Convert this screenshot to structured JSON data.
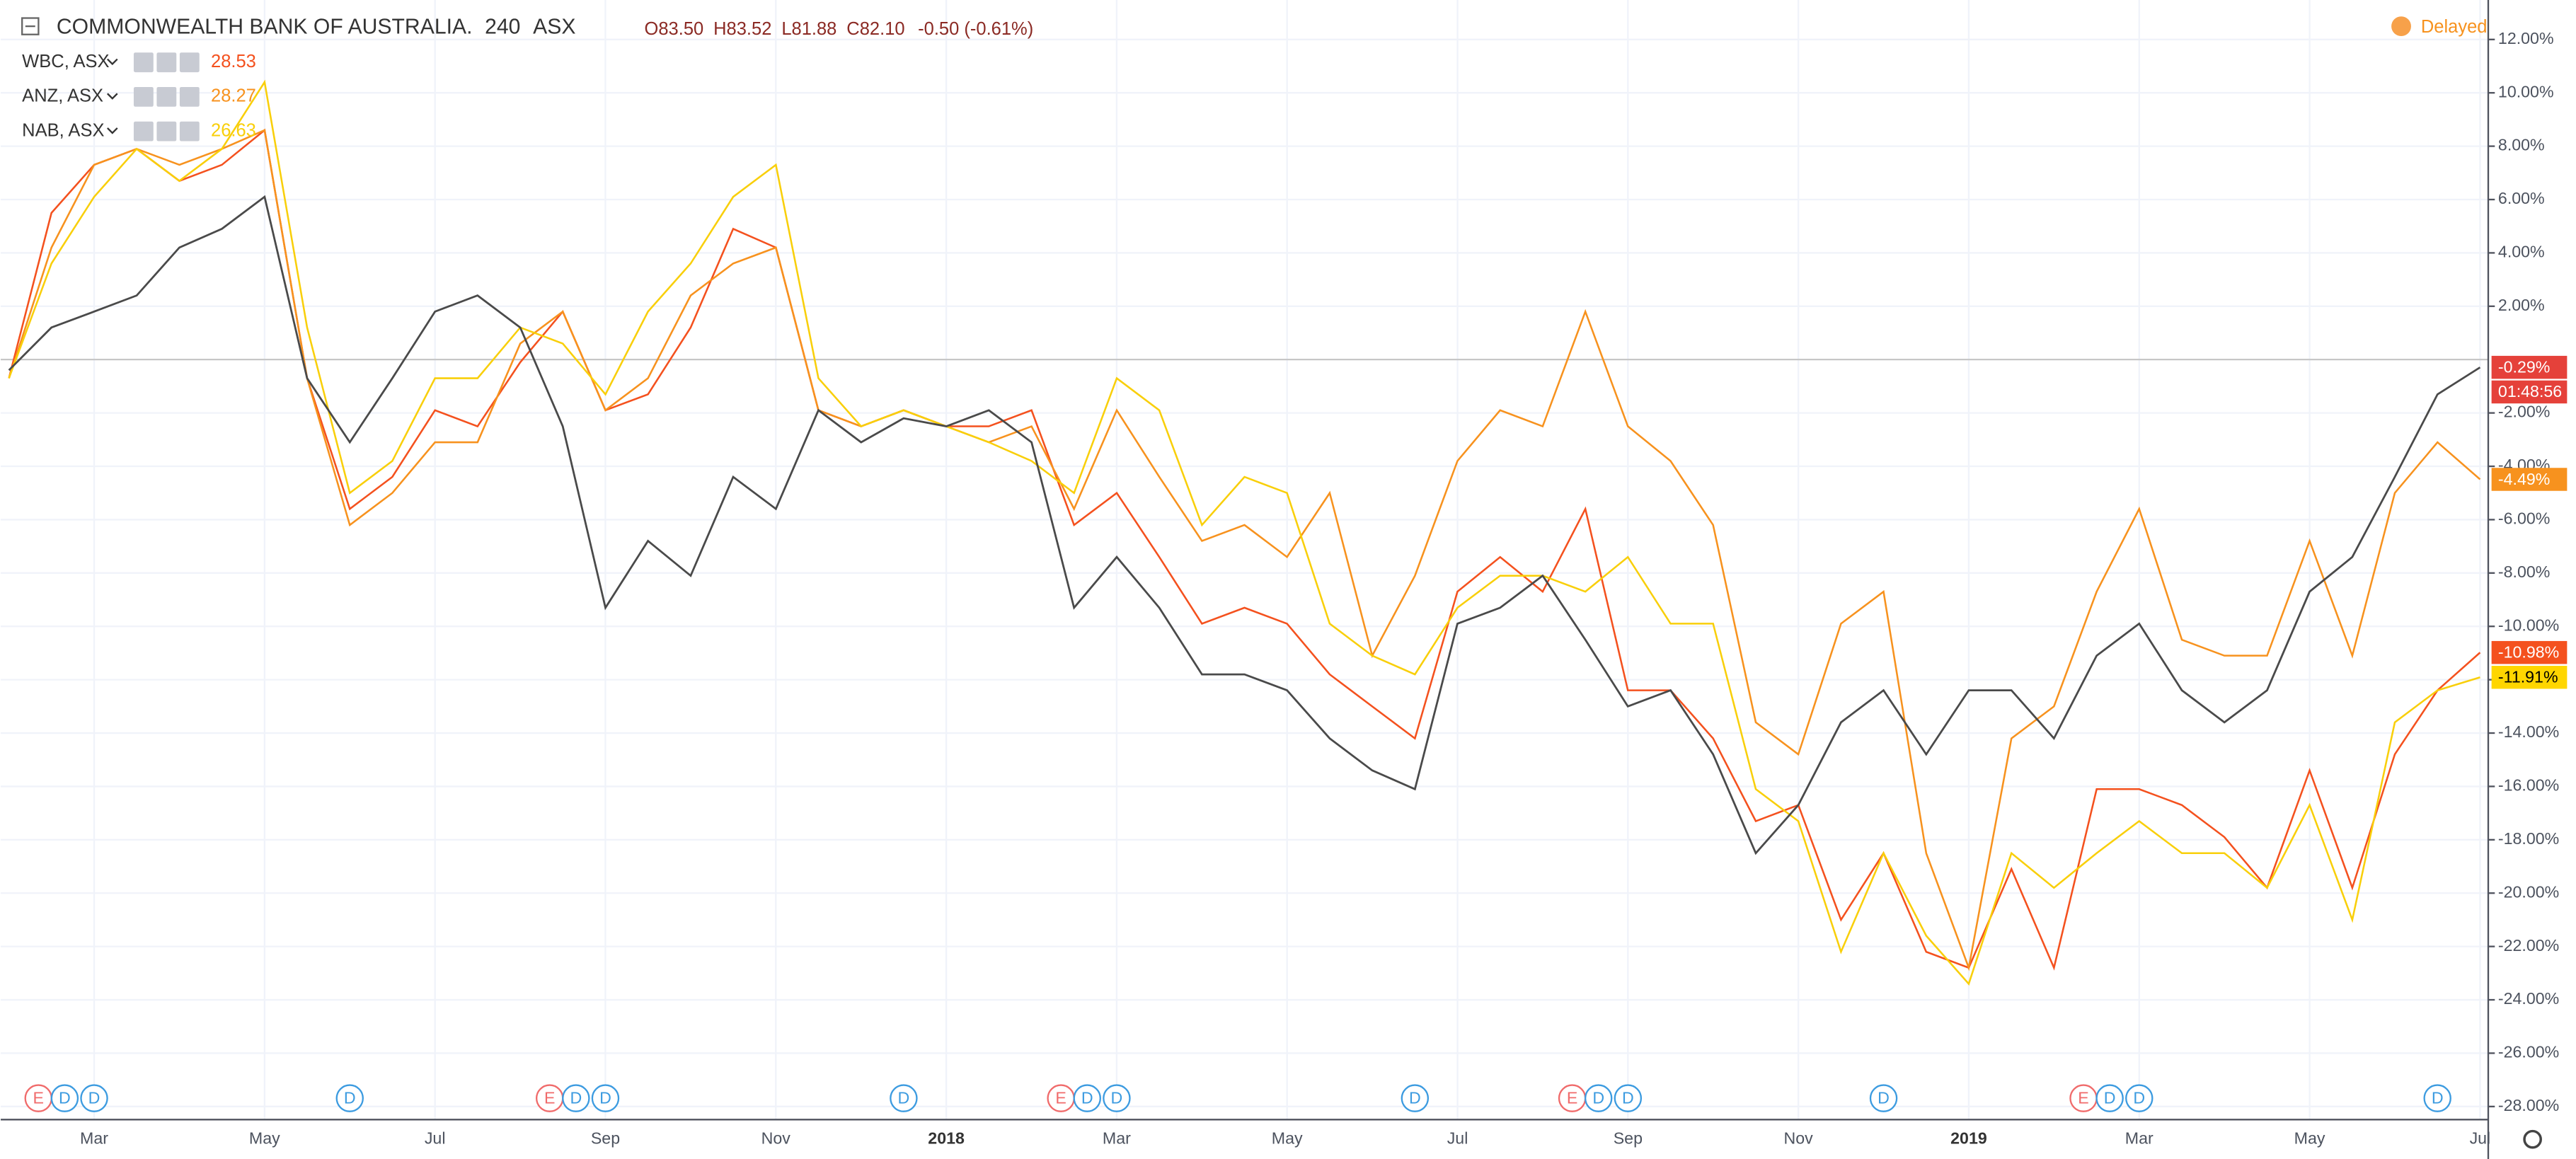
{
  "chart_data": {
    "type": "line",
    "title": "COMMONWEALTH BANK OF AUSTRALIA.",
    "interval": "240",
    "exchange": "ASX",
    "open": "O83.50",
    "high": "H83.52",
    "low": "L81.88",
    "close": "C82.10",
    "change": "-0.50 (-0.61%)",
    "status": "Delayed",
    "countdown": "01:48:56",
    "categories": [
      null,
      null,
      "Mar",
      null,
      null,
      null,
      "May",
      null,
      null,
      null,
      "Jul",
      null,
      null,
      null,
      "Sep",
      null,
      null,
      null,
      "Nov",
      null,
      null,
      null,
      "2018",
      null,
      null,
      null,
      "Mar",
      null,
      null,
      null,
      "May",
      null,
      null,
      null,
      "Jul",
      null,
      null,
      null,
      "Sep",
      null,
      null,
      null,
      "Nov",
      null,
      null,
      null,
      "2019",
      null,
      null,
      null,
      "Mar",
      null,
      null,
      null,
      "May",
      null,
      null,
      null,
      "Jul"
    ],
    "events": [
      null,
      [
        "E",
        "D"
      ],
      [
        "D"
      ],
      null,
      null,
      null,
      null,
      null,
      [
        "D"
      ],
      null,
      null,
      null,
      null,
      [
        "E",
        "D"
      ],
      [
        "D"
      ],
      null,
      null,
      null,
      null,
      null,
      null,
      [
        "D"
      ],
      null,
      null,
      null,
      [
        "E",
        "D"
      ],
      [
        "D"
      ],
      null,
      null,
      null,
      null,
      null,
      null,
      [
        "D"
      ],
      null,
      null,
      null,
      [
        "E",
        "D"
      ],
      [
        "D"
      ],
      null,
      null,
      null,
      null,
      null,
      [
        "D"
      ],
      null,
      null,
      null,
      null,
      [
        "E",
        "D"
      ],
      [
        "D"
      ],
      null,
      null,
      null,
      null,
      null,
      null,
      [
        "D"
      ],
      null
    ],
    "ylim": [
      -28.49,
      13.48
    ],
    "yticks": [
      {
        "value": -28,
        "label": "-28.00%"
      },
      {
        "value": -26,
        "label": "-26.00%"
      },
      {
        "value": -24,
        "label": "-24.00%"
      },
      {
        "value": -22,
        "label": "-22.00%"
      },
      {
        "value": -20,
        "label": "-20.00%"
      },
      {
        "value": -18,
        "label": "-18.00%"
      },
      {
        "value": -16,
        "label": "-16.00%"
      },
      {
        "value": -14,
        "label": "-14.00%"
      },
      {
        "value": -12,
        "label": "-12.00%"
      },
      {
        "value": -10,
        "label": "-10.00%"
      },
      {
        "value": -8,
        "label": "-8.00%"
      },
      {
        "value": -6,
        "label": "-6.00%"
      },
      {
        "value": -4,
        "label": "-4.00%"
      },
      {
        "value": -2,
        "label": "-2.00%"
      },
      {
        "value": 2,
        "label": "2.00%"
      },
      {
        "value": 4,
        "label": "4.00%"
      },
      {
        "value": 6,
        "label": "6.00%"
      },
      {
        "value": 8,
        "label": "8.00%"
      },
      {
        "value": 10,
        "label": "10.00%"
      },
      {
        "value": 12,
        "label": "12.00%"
      }
    ],
    "grid": true,
    "series": [
      {
        "color": "#4a4a4a",
        "label_color": "#e5413a",
        "values": [
          -0.4,
          1.2,
          1.8,
          2.4,
          4.2,
          4.9,
          6.1,
          -0.7,
          -3.1,
          -0.7,
          1.8,
          2.4,
          1.2,
          -2.5,
          -9.3,
          -6.8,
          -8.1,
          -4.4,
          -5.6,
          -1.9,
          -3.1,
          -2.2,
          -2.5,
          -1.9,
          -3.1,
          -9.3,
          -7.4,
          -9.3,
          -11.8,
          -11.8,
          -12.4,
          -14.2,
          -15.4,
          -16.1,
          -9.9,
          -9.3,
          -8.1,
          -10.5,
          -13,
          -12.4,
          -14.8,
          -18.5,
          -16.7,
          -13.6,
          -12.4,
          -14.8,
          -12.4,
          -12.4,
          -14.2,
          -11.1,
          -9.9,
          -12.4,
          -13.6,
          -12.4,
          -8.7,
          -7.4,
          -4.4,
          -1.3,
          -0.29
        ],
        "value_labels": [
          null,
          null,
          null,
          null,
          null,
          null,
          null,
          null,
          null,
          null,
          null,
          null,
          null,
          null,
          null,
          null,
          null,
          null,
          null,
          null,
          null,
          null,
          null,
          null,
          null,
          null,
          null,
          null,
          null,
          null,
          null,
          null,
          null,
          null,
          null,
          null,
          null,
          null,
          null,
          null,
          null,
          null,
          null,
          null,
          null,
          null,
          null,
          null,
          null,
          null,
          null,
          null,
          null,
          null,
          null,
          null,
          null,
          null,
          "-0.29%"
        ]
      },
      {
        "name": "WBC, ASX",
        "legend_value": 28.53,
        "color": "#f4511e",
        "label_color": "#f4511e",
        "values": [
          -0.7,
          5.5,
          7.3,
          7.9,
          6.7,
          7.3,
          8.6,
          -0.7,
          -5.6,
          -4.4,
          -1.9,
          -2.5,
          -0.1,
          1.8,
          -1.9,
          -1.3,
          1.2,
          4.9,
          4.2,
          -1.9,
          -2.5,
          -1.9,
          -2.5,
          -2.5,
          -1.9,
          -6.2,
          -5,
          -7.4,
          -9.9,
          -9.3,
          -9.9,
          -11.8,
          -13,
          -14.2,
          -8.7,
          -7.4,
          -8.7,
          -5.6,
          -12.4,
          -12.4,
          -14.2,
          -17.3,
          -16.7,
          -21,
          -18.5,
          -22.2,
          -22.8,
          -19.1,
          -22.8,
          -16.1,
          -16.1,
          -16.7,
          -17.9,
          -19.8,
          -15.4,
          -19.8,
          -14.8,
          -12.4,
          -10.98
        ],
        "value_labels": [
          null,
          null,
          null,
          null,
          null,
          null,
          null,
          null,
          null,
          null,
          null,
          null,
          null,
          null,
          null,
          null,
          null,
          null,
          null,
          null,
          null,
          null,
          null,
          null,
          null,
          null,
          null,
          null,
          null,
          null,
          null,
          null,
          null,
          null,
          null,
          null,
          null,
          null,
          null,
          null,
          null,
          null,
          null,
          null,
          null,
          null,
          null,
          null,
          null,
          null,
          null,
          null,
          null,
          null,
          null,
          null,
          null,
          null,
          "-10.98%"
        ]
      },
      {
        "name": "ANZ, ASX",
        "legend_value": 28.27,
        "color": "#f7921e",
        "label_color": "#f7921e",
        "values": [
          -0.7,
          4.2,
          7.3,
          7.9,
          7.3,
          7.9,
          8.6,
          -0.7,
          -6.2,
          -5,
          -3.1,
          -3.1,
          0.6,
          1.8,
          -1.9,
          -0.7,
          2.4,
          3.6,
          4.2,
          -1.9,
          -2.5,
          -1.9,
          -2.5,
          -3.1,
          -2.5,
          -5.6,
          -1.9,
          -4.4,
          -6.8,
          -6.2,
          -7.4,
          -5,
          -11.1,
          -8.1,
          -3.8,
          -1.9,
          -2.5,
          1.8,
          -2.5,
          -3.8,
          -6.2,
          -13.6,
          -14.8,
          -9.9,
          -8.7,
          -18.5,
          -22.8,
          -14.2,
          -13,
          -8.7,
          -5.6,
          -10.5,
          -11.1,
          -11.1,
          -6.8,
          -11.1,
          -5,
          -3.1,
          -4.49
        ],
        "value_labels": [
          null,
          null,
          null,
          null,
          null,
          null,
          null,
          null,
          null,
          null,
          null,
          null,
          null,
          null,
          null,
          null,
          null,
          null,
          null,
          null,
          null,
          null,
          null,
          null,
          null,
          null,
          null,
          null,
          null,
          null,
          null,
          null,
          null,
          null,
          null,
          null,
          null,
          null,
          null,
          null,
          null,
          null,
          null,
          null,
          null,
          null,
          null,
          null,
          null,
          null,
          null,
          null,
          null,
          null,
          null,
          null,
          null,
          null,
          "-4.49%"
        ]
      },
      {
        "name": "NAB, ASX",
        "legend_value": 26.63,
        "color": "#f9cf0a",
        "label_color": "#ffd600",
        "values": [
          -0.7,
          3.6,
          6.1,
          7.9,
          6.7,
          7.9,
          10.4,
          1.2,
          -5,
          -3.8,
          -0.7,
          -0.7,
          1.2,
          0.6,
          -1.3,
          1.8,
          3.6,
          6.1,
          7.3,
          -0.7,
          -2.5,
          -1.9,
          -2.5,
          -3.1,
          -3.8,
          -5,
          -0.7,
          -1.9,
          -6.2,
          -4.4,
          -5,
          -9.9,
          -11.1,
          -11.8,
          -9.3,
          -8.1,
          -8.1,
          -8.7,
          -7.4,
          -9.9,
          -9.9,
          -16.1,
          -17.3,
          -22.2,
          -18.5,
          -21.6,
          -23.4,
          -18.5,
          -19.8,
          -18.5,
          -17.3,
          -18.5,
          -18.5,
          -19.8,
          -16.7,
          -21,
          -13.6,
          -12.4,
          -11.91
        ],
        "value_labels": [
          null,
          null,
          null,
          null,
          null,
          null,
          null,
          null,
          null,
          null,
          null,
          null,
          null,
          null,
          null,
          null,
          null,
          null,
          null,
          null,
          null,
          null,
          null,
          null,
          null,
          null,
          null,
          null,
          null,
          null,
          null,
          null,
          null,
          null,
          null,
          null,
          null,
          null,
          null,
          null,
          null,
          null,
          null,
          null,
          null,
          null,
          null,
          null,
          null,
          null,
          null,
          null,
          null,
          null,
          null,
          null,
          null,
          null,
          "-11.91%"
        ]
      }
    ]
  }
}
